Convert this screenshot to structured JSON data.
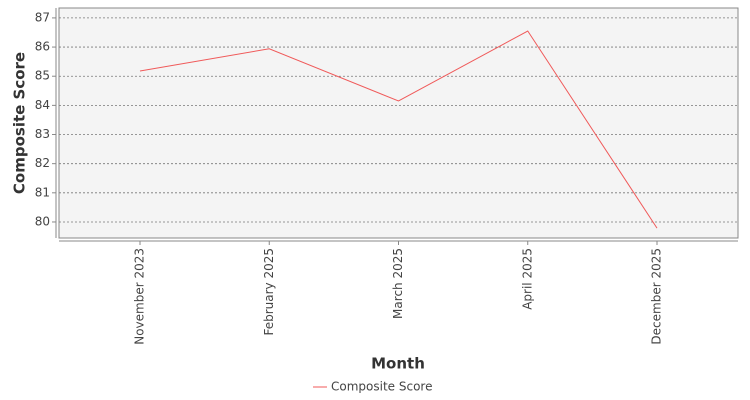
{
  "chart_data": {
    "type": "line",
    "x_label": "Month",
    "y_label": "Composite Score",
    "categories": [
      "November 2023",
      "February 2025",
      "March 2025",
      "April 2025",
      "December 2025"
    ],
    "series": [
      {
        "name": "Composite Score",
        "color": "#f05a5a",
        "values": [
          85.18,
          85.94,
          84.15,
          86.55,
          79.79
        ]
      }
    ],
    "ylim": [
      79.45,
      87.34
    ],
    "yticks": [
      80,
      81,
      82,
      83,
      84,
      85,
      86,
      87
    ],
    "grid": true,
    "legend": "bottom"
  }
}
